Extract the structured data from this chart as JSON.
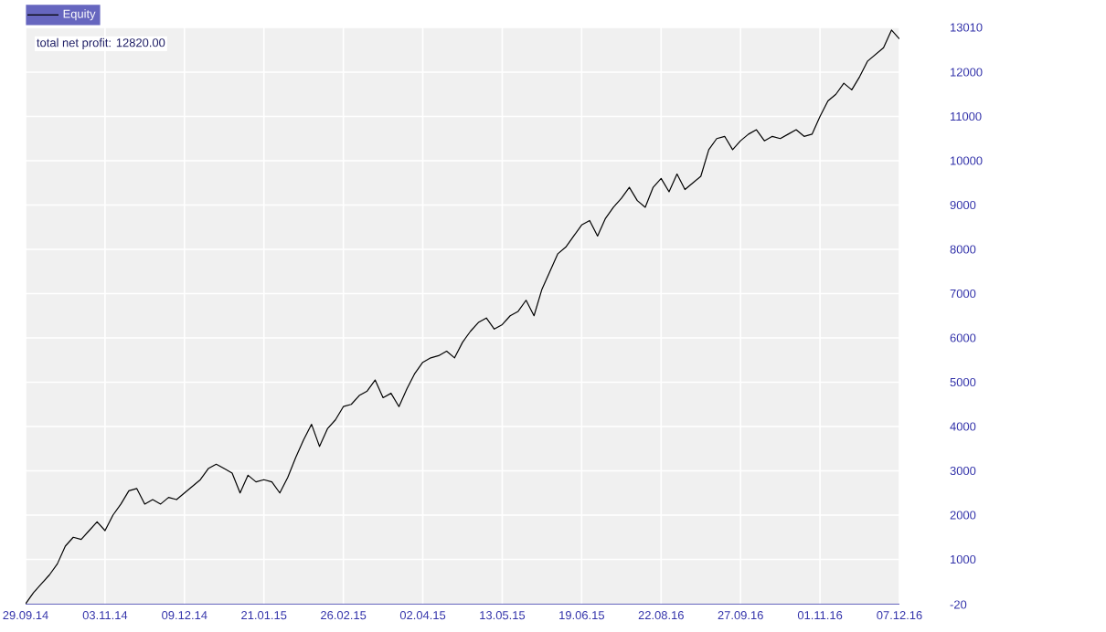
{
  "chart_data": {
    "type": "line",
    "annotations": [
      "total net profit: 12820.00"
    ],
    "categories": [
      "29.09.14",
      null,
      null,
      null,
      null,
      null,
      null,
      null,
      null,
      null,
      "03.11.14",
      null,
      null,
      null,
      null,
      null,
      null,
      null,
      null,
      null,
      "09.12.14",
      null,
      null,
      null,
      null,
      null,
      null,
      null,
      null,
      null,
      "21.01.15",
      null,
      null,
      null,
      null,
      null,
      null,
      null,
      null,
      null,
      "26.02.15",
      null,
      null,
      null,
      null,
      null,
      null,
      null,
      null,
      null,
      "02.04.15",
      null,
      null,
      null,
      null,
      null,
      null,
      null,
      null,
      null,
      "13.05.15",
      null,
      null,
      null,
      null,
      null,
      null,
      null,
      null,
      null,
      "19.06.15",
      null,
      null,
      null,
      null,
      null,
      null,
      null,
      null,
      null,
      "22.08.16",
      null,
      null,
      null,
      null,
      null,
      null,
      null,
      null,
      null,
      "27.09.16",
      null,
      null,
      null,
      null,
      null,
      null,
      null,
      null,
      null,
      "01.11.16",
      null,
      null,
      null,
      null,
      null,
      null,
      null,
      null,
      null,
      "07.12.16"
    ],
    "series": [
      {
        "name": "Equity",
        "color": "#000000",
        "values": [
          0,
          250,
          450,
          650,
          900,
          1300,
          1500,
          1450,
          1650,
          1850,
          1650,
          2000,
          2250,
          2550,
          2600,
          2250,
          2350,
          2250,
          2400,
          2350,
          2500,
          2650,
          2800,
          3050,
          3150,
          3050,
          2950,
          2500,
          2900,
          2750,
          2800,
          2750,
          2500,
          2850,
          3300,
          3700,
          4050,
          3550,
          3950,
          4150,
          4450,
          4500,
          4700,
          4800,
          5050,
          4650,
          4750,
          4450,
          4850,
          5200,
          5450,
          5550,
          5600,
          5700,
          5550,
          5900,
          6150,
          6350,
          6450,
          6200,
          6300,
          6500,
          6600,
          6850,
          6500,
          7100,
          7500,
          7900,
          8050,
          8300,
          8550,
          8650,
          8300,
          8700,
          8950,
          9150,
          9400,
          9100,
          8950,
          9400,
          9600,
          9300,
          9700,
          9350,
          9500,
          9650,
          10250,
          10500,
          10550,
          10250,
          10450,
          10600,
          10700,
          10450,
          10550,
          10500,
          10600,
          10700,
          10550,
          10600,
          11000,
          11350,
          11500,
          11750,
          11600,
          11900,
          12250,
          12400,
          12550,
          12950,
          12750
        ]
      }
    ],
    "ylim": [
      -20,
      13010
    ],
    "yticks": [
      -20,
      1000,
      2000,
      3000,
      4000,
      5000,
      6000,
      7000,
      8000,
      9000,
      10000,
      11000,
      12000,
      13010
    ],
    "grid": true,
    "legend": "top left"
  }
}
